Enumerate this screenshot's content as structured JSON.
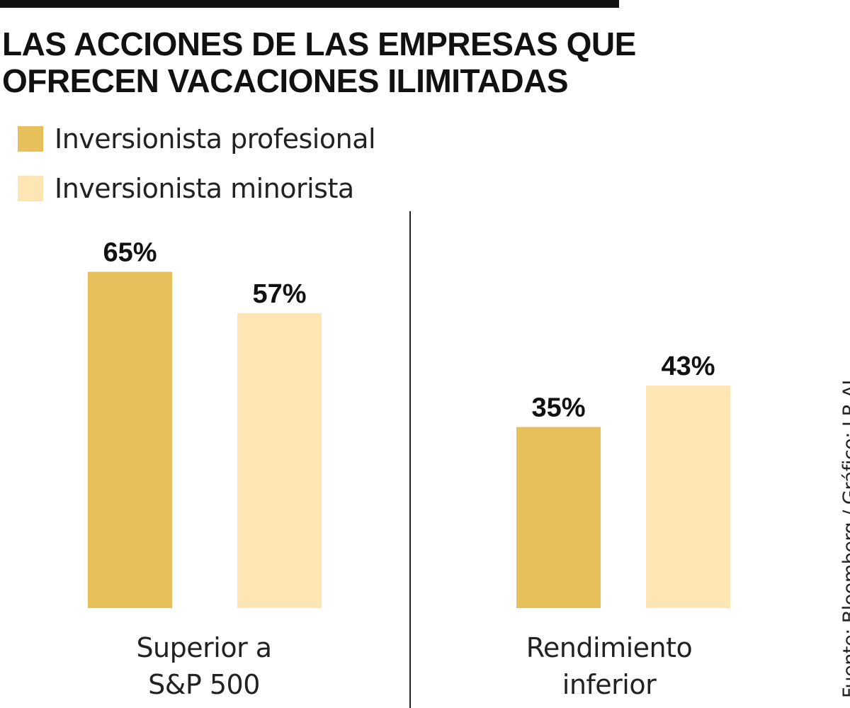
{
  "colors": {
    "profesional": "#e8c05b",
    "minorista": "#fde6b4"
  },
  "chart_data": {
    "type": "bar",
    "title": [
      "LAS ACCIONES DE LAS EMPRESAS QUE",
      "OFRECEN VACACIONES ILIMITADAS"
    ],
    "categories": [
      [
        "Superior a",
        "S&P 500"
      ],
      [
        "Rendimiento",
        "inferior"
      ]
    ],
    "series": [
      {
        "name": "Inversionista profesional",
        "values": [
          65,
          35
        ]
      },
      {
        "name": "Inversionista minorista",
        "values": [
          57,
          43
        ]
      }
    ],
    "value_labels": [
      [
        "65%",
        "35%"
      ],
      [
        "57%",
        "43%"
      ]
    ],
    "unit": "%",
    "ylim": [
      0,
      100
    ],
    "grid": false,
    "legend": "top-left",
    "source": "Fuente: Bloomberg / Gráfico: LR-AL"
  }
}
